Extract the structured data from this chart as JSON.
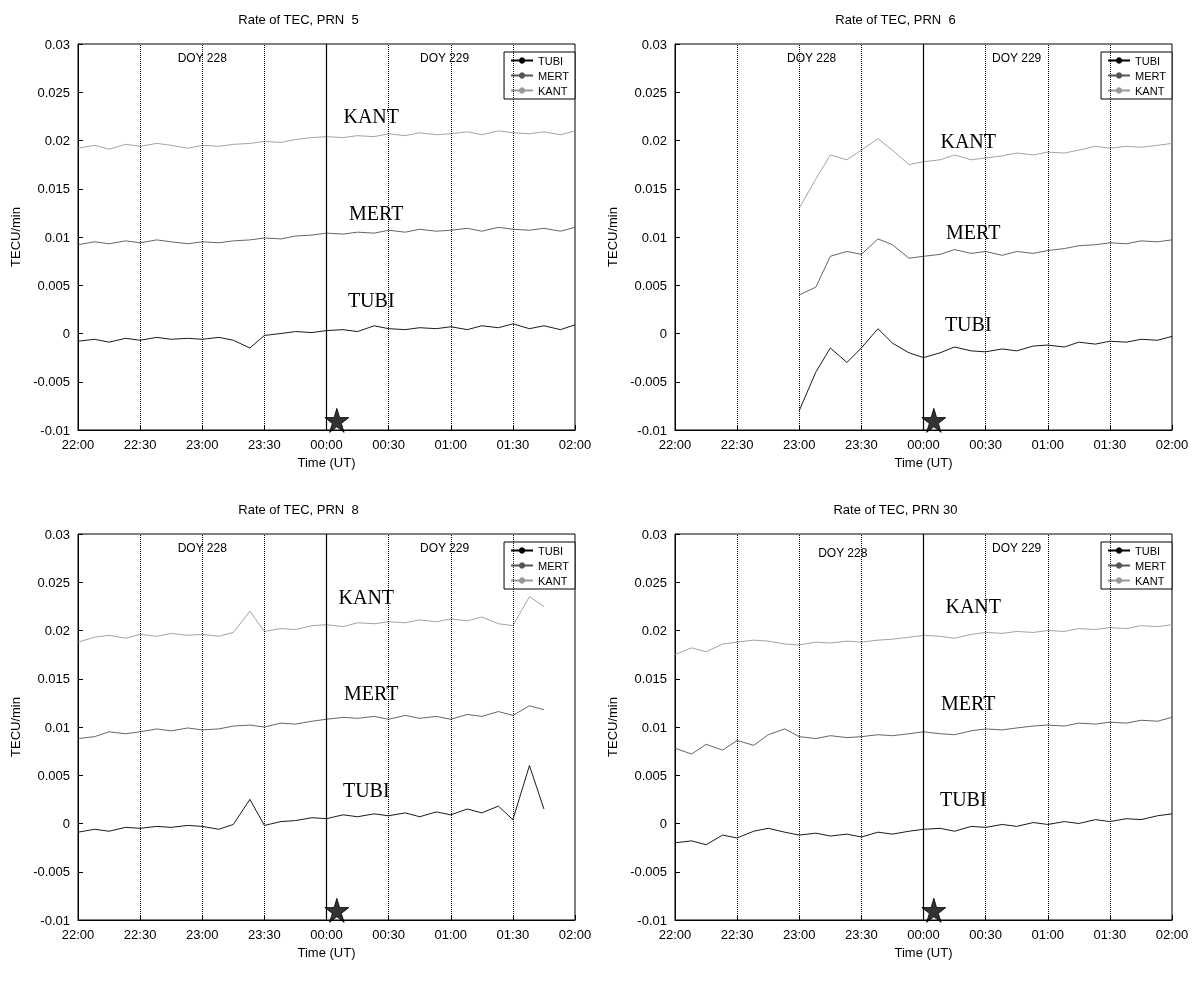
{
  "chart_data": [
    {
      "type": "line",
      "title": "Rate of TEC, PRN  5",
      "xlabel": "Time (UT)",
      "ylabel": "TECU/min",
      "xlim": [
        "--08-16T22:00",
        "--08-17T02:00"
      ],
      "ylim": [
        -0.01,
        0.03
      ],
      "xticks": [
        {
          "value": "--08-16T22:00",
          "label": "22:00"
        },
        {
          "value": "--08-16T22:30",
          "label": "22:30"
        },
        {
          "value": "--08-16T23:00",
          "label": "23:00"
        },
        {
          "value": "--08-16T23:30",
          "label": "23:30"
        },
        {
          "value": "--08-17T00:00",
          "label": "00:00"
        },
        {
          "value": "--08-17T00:30",
          "label": "00:30"
        },
        {
          "value": "--08-17T01:00",
          "label": "01:00"
        },
        {
          "value": "--08-17T01:30",
          "label": "01:30"
        },
        {
          "value": "--08-17T02:00",
          "label": "02:00"
        }
      ],
      "yticks": [
        -0.01,
        -0.005,
        0,
        0.005,
        0.01,
        0.015,
        0.02,
        0.025,
        0.03
      ],
      "grid": "x",
      "legend": "top right",
      "marker": "none",
      "line_style": "solid",
      "ref_lines": [
        {
          "axis": "x",
          "value": "--08-17T00:00",
          "color": "#000000",
          "line_style": "solid"
        }
      ],
      "annotations": [
        "DOY 228",
        "DOY 229",
        "KANT",
        "MERT",
        "TUBI"
      ],
      "x": [
        "--08-16T22:00",
        "--08-16T22:08",
        "--08-16T22:15",
        "--08-16T22:23",
        "--08-16T22:30",
        "--08-16T22:38",
        "--08-16T22:45",
        "--08-16T22:53",
        "--08-16T23:00",
        "--08-16T23:08",
        "--08-16T23:15",
        "--08-16T23:23",
        "--08-16T23:30",
        "--08-16T23:38",
        "--08-16T23:45",
        "--08-16T23:53",
        "--08-17T00:00",
        "--08-17T00:08",
        "--08-17T00:15",
        "--08-17T00:23",
        "--08-17T00:30",
        "--08-17T00:38",
        "--08-17T00:45",
        "--08-17T00:53",
        "--08-17T01:00",
        "--08-17T01:08",
        "--08-17T01:15",
        "--08-17T01:23",
        "--08-17T01:30",
        "--08-17T01:38",
        "--08-17T01:45",
        "--08-17T01:53",
        "--08-17T02:00"
      ],
      "series": [
        {
          "name": "TUBI",
          "color": "#000000",
          "values": [
            -0.0008,
            -0.0006,
            -0.0009,
            -0.0005,
            -0.0007,
            -0.0004,
            -0.0006,
            -0.0005,
            -0.0006,
            -0.0004,
            -0.0007,
            -0.0015,
            -0.0002,
            0,
            0.0002,
            0.0001,
            0.0003,
            0.0004,
            0.0002,
            0.0008,
            0.0005,
            0.0004,
            0.0006,
            0.0005,
            0.0007,
            0.0004,
            0.0008,
            0.0006,
            0.001,
            0.0005,
            0.0008,
            0.0004,
            0.0009
          ]
        },
        {
          "name": "MERT",
          "color": "#555555",
          "values": [
            0.0092,
            0.0095,
            0.0093,
            0.0096,
            0.0094,
            0.0097,
            0.0095,
            0.0093,
            0.0095,
            0.0094,
            0.0096,
            0.0097,
            0.0099,
            0.0098,
            0.0101,
            0.0102,
            0.0104,
            0.0103,
            0.0105,
            0.0104,
            0.0107,
            0.0105,
            0.0108,
            0.0106,
            0.0107,
            0.0109,
            0.0106,
            0.011,
            0.0108,
            0.0107,
            0.0109,
            0.0106,
            0.011
          ]
        },
        {
          "name": "KANT",
          "color": "#999999",
          "values": [
            0.0192,
            0.0195,
            0.0191,
            0.0196,
            0.0194,
            0.0197,
            0.0195,
            0.0192,
            0.0195,
            0.0194,
            0.0196,
            0.0197,
            0.0199,
            0.0198,
            0.0201,
            0.0203,
            0.0204,
            0.0203,
            0.0205,
            0.0204,
            0.0207,
            0.0205,
            0.0208,
            0.0206,
            0.0207,
            0.0209,
            0.0206,
            0.021,
            0.0208,
            0.0207,
            0.0209,
            0.0206,
            0.021
          ]
        },
        {
          "type": "scatter",
          "marker": "star",
          "color": "#000000",
          "x": [
            "--08-17T00:05"
          ],
          "values": [
            -0.009
          ]
        }
      ]
    },
    {
      "type": "line",
      "title": "Rate of TEC, PRN  6",
      "xlabel": "Time (UT)",
      "ylabel": "TECU/min",
      "xlim": [
        "--08-16T22:00",
        "--08-17T02:00"
      ],
      "ylim": [
        -0.01,
        0.03
      ],
      "xticks": [
        {
          "value": "--08-16T22:00",
          "label": "22:00"
        },
        {
          "value": "--08-16T22:30",
          "label": "22:30"
        },
        {
          "value": "--08-16T23:00",
          "label": "23:00"
        },
        {
          "value": "--08-16T23:30",
          "label": "23:30"
        },
        {
          "value": "--08-17T00:00",
          "label": "00:00"
        },
        {
          "value": "--08-17T00:30",
          "label": "00:30"
        },
        {
          "value": "--08-17T01:00",
          "label": "01:00"
        },
        {
          "value": "--08-17T01:30",
          "label": "01:30"
        },
        {
          "value": "--08-17T02:00",
          "label": "02:00"
        }
      ],
      "yticks": [
        -0.01,
        -0.005,
        0,
        0.005,
        0.01,
        0.015,
        0.02,
        0.025,
        0.03
      ],
      "grid": "x",
      "legend": "top right",
      "marker": "none",
      "line_style": "solid",
      "ref_lines": [
        {
          "axis": "x",
          "value": "--08-17T00:00",
          "color": "#000000",
          "line_style": "solid"
        }
      ],
      "annotations": [
        "DOY 228",
        "DOY 229",
        "KANT",
        "MERT",
        "TUBI"
      ],
      "x": [
        "--08-16T23:00",
        "--08-16T23:08",
        "--08-16T23:15",
        "--08-16T23:23",
        "--08-16T23:30",
        "--08-16T23:38",
        "--08-16T23:45",
        "--08-16T23:53",
        "--08-17T00:00",
        "--08-17T00:08",
        "--08-17T00:15",
        "--08-17T00:23",
        "--08-17T00:30",
        "--08-17T00:38",
        "--08-17T00:45",
        "--08-17T00:53",
        "--08-17T01:00",
        "--08-17T01:08",
        "--08-17T01:15",
        "--08-17T01:23",
        "--08-17T01:30",
        "--08-17T01:38",
        "--08-17T01:45",
        "--08-17T01:53",
        "--08-17T02:00"
      ],
      "series": [
        {
          "name": "TUBI",
          "color": "#000000",
          "values": [
            -0.008,
            -0.004,
            -0.0015,
            -0.003,
            -0.0015,
            0.0005,
            -0.001,
            -0.002,
            -0.0025,
            -0.002,
            -0.0014,
            -0.0018,
            -0.0019,
            -0.0016,
            -0.0018,
            -0.0013,
            -0.0012,
            -0.0014,
            -0.0009,
            -0.0011,
            -0.0008,
            -0.0009,
            -0.0006,
            -0.0007,
            -0.0003
          ]
        },
        {
          "name": "MERT",
          "color": "#555555",
          "values": [
            0.004,
            0.0048,
            0.008,
            0.0085,
            0.0082,
            0.0098,
            0.0092,
            0.0078,
            0.008,
            0.0082,
            0.0087,
            0.0083,
            0.0085,
            0.0081,
            0.0085,
            0.0083,
            0.0086,
            0.0088,
            0.0091,
            0.0092,
            0.0094,
            0.0093,
            0.0096,
            0.0095,
            0.0097
          ]
        },
        {
          "name": "KANT",
          "color": "#999999",
          "values": [
            0.013,
            0.016,
            0.0185,
            0.018,
            0.019,
            0.0202,
            0.019,
            0.0175,
            0.0178,
            0.018,
            0.0185,
            0.018,
            0.0182,
            0.0184,
            0.0187,
            0.0185,
            0.0188,
            0.0187,
            0.019,
            0.0194,
            0.0192,
            0.0194,
            0.0193,
            0.0195,
            0.0197
          ]
        },
        {
          "type": "scatter",
          "marker": "star",
          "color": "#000000",
          "x": [
            "--08-17T00:05"
          ],
          "values": [
            -0.009
          ]
        }
      ]
    },
    {
      "type": "line",
      "title": "Rate of TEC, PRN  8",
      "xlabel": "Time (UT)",
      "ylabel": "TECU/min",
      "xlim": [
        "--08-16T22:00",
        "--08-17T02:00"
      ],
      "ylim": [
        -0.01,
        0.03
      ],
      "xticks": [
        {
          "value": "--08-16T22:00",
          "label": "22:00"
        },
        {
          "value": "--08-16T22:30",
          "label": "22:30"
        },
        {
          "value": "--08-16T23:00",
          "label": "23:00"
        },
        {
          "value": "--08-16T23:30",
          "label": "23:30"
        },
        {
          "value": "--08-17T00:00",
          "label": "00:00"
        },
        {
          "value": "--08-17T00:30",
          "label": "00:30"
        },
        {
          "value": "--08-17T01:00",
          "label": "01:00"
        },
        {
          "value": "--08-17T01:30",
          "label": "01:30"
        },
        {
          "value": "--08-17T02:00",
          "label": "02:00"
        }
      ],
      "yticks": [
        -0.01,
        -0.005,
        0,
        0.005,
        0.01,
        0.015,
        0.02,
        0.025,
        0.03
      ],
      "grid": "x",
      "legend": "top right",
      "marker": "none",
      "line_style": "solid",
      "ref_lines": [
        {
          "axis": "x",
          "value": "--08-17T00:00",
          "color": "#000000",
          "line_style": "solid"
        }
      ],
      "annotations": [
        "DOY 228",
        "DOY 229",
        "KANT",
        "MERT",
        "TUBI"
      ],
      "x": [
        "--08-16T22:00",
        "--08-16T22:08",
        "--08-16T22:15",
        "--08-16T22:23",
        "--08-16T22:30",
        "--08-16T22:38",
        "--08-16T22:45",
        "--08-16T22:53",
        "--08-16T23:00",
        "--08-16T23:08",
        "--08-16T23:15",
        "--08-16T23:23",
        "--08-16T23:30",
        "--08-16T23:38",
        "--08-16T23:45",
        "--08-16T23:53",
        "--08-17T00:00",
        "--08-17T00:08",
        "--08-17T00:15",
        "--08-17T00:23",
        "--08-17T00:30",
        "--08-17T00:38",
        "--08-17T00:45",
        "--08-17T00:53",
        "--08-17T01:00",
        "--08-17T01:08",
        "--08-17T01:15",
        "--08-17T01:23",
        "--08-17T01:30",
        "--08-17T01:38",
        "--08-17T01:45"
      ],
      "series": [
        {
          "name": "TUBI",
          "color": "#000000",
          "values": [
            -0.0009,
            -0.0006,
            -0.0008,
            -0.0004,
            -0.0005,
            -0.0003,
            -0.0004,
            -0.0002,
            -0.0003,
            -0.0006,
            -0.0001,
            0.0025,
            -0.0002,
            0.0002,
            0.0003,
            0.0006,
            0.0005,
            0.0009,
            0.0007,
            0.001,
            0.0008,
            0.0011,
            0.0007,
            0.0012,
            0.0009,
            0.0015,
            0.0011,
            0.0018,
            0.0004,
            0.006,
            0.0015
          ]
        },
        {
          "name": "MERT",
          "color": "#555555",
          "values": [
            0.0088,
            0.009,
            0.0095,
            0.0093,
            0.0095,
            0.0098,
            0.0096,
            0.0099,
            0.0097,
            0.0098,
            0.0101,
            0.0102,
            0.01,
            0.0104,
            0.0103,
            0.0106,
            0.0108,
            0.011,
            0.0109,
            0.0111,
            0.0108,
            0.0112,
            0.0109,
            0.0111,
            0.0108,
            0.0113,
            0.0111,
            0.0116,
            0.0112,
            0.0122,
            0.0118
          ]
        },
        {
          "name": "KANT",
          "color": "#999999",
          "values": [
            0.0188,
            0.0193,
            0.0195,
            0.0192,
            0.0196,
            0.0194,
            0.0197,
            0.0195,
            0.0196,
            0.0194,
            0.0198,
            0.022,
            0.0199,
            0.0202,
            0.0201,
            0.0205,
            0.0206,
            0.0204,
            0.0208,
            0.0207,
            0.0209,
            0.0208,
            0.0211,
            0.0209,
            0.0212,
            0.021,
            0.0214,
            0.0207,
            0.0205,
            0.0235,
            0.0225
          ]
        },
        {
          "type": "scatter",
          "marker": "star",
          "color": "#000000",
          "x": [
            "--08-17T00:05"
          ],
          "values": [
            -0.009
          ]
        }
      ]
    },
    {
      "type": "line",
      "title": "Rate of TEC, PRN 30",
      "xlabel": "Time (UT)",
      "ylabel": "TECU/min",
      "xlim": [
        "--08-16T22:00",
        "--08-17T02:00"
      ],
      "ylim": [
        -0.01,
        0.03
      ],
      "xticks": [
        {
          "value": "--08-16T22:00",
          "label": "22:00"
        },
        {
          "value": "--08-16T22:30",
          "label": "22:30"
        },
        {
          "value": "--08-16T23:00",
          "label": "23:00"
        },
        {
          "value": "--08-16T23:30",
          "label": "23:30"
        },
        {
          "value": "--08-17T00:00",
          "label": "00:00"
        },
        {
          "value": "--08-17T00:30",
          "label": "00:30"
        },
        {
          "value": "--08-17T01:00",
          "label": "01:00"
        },
        {
          "value": "--08-17T01:30",
          "label": "01:30"
        },
        {
          "value": "--08-17T02:00",
          "label": "02:00"
        }
      ],
      "yticks": [
        -0.01,
        -0.005,
        0,
        0.005,
        0.01,
        0.015,
        0.02,
        0.025,
        0.03
      ],
      "grid": "x",
      "legend": "top right",
      "marker": "none",
      "line_style": "solid",
      "ref_lines": [
        {
          "axis": "x",
          "value": "--08-17T00:00",
          "color": "#000000",
          "line_style": "solid"
        }
      ],
      "annotations": [
        "DOY 228",
        "DOY 229",
        "KANT",
        "MERT",
        "TUBI"
      ],
      "x": [
        "--08-16T22:00",
        "--08-16T22:08",
        "--08-16T22:15",
        "--08-16T22:23",
        "--08-16T22:30",
        "--08-16T22:38",
        "--08-16T22:45",
        "--08-16T22:53",
        "--08-16T23:00",
        "--08-16T23:08",
        "--08-16T23:15",
        "--08-16T23:23",
        "--08-16T23:30",
        "--08-16T23:38",
        "--08-16T23:45",
        "--08-16T23:53",
        "--08-17T00:00",
        "--08-17T00:08",
        "--08-17T00:15",
        "--08-17T00:23",
        "--08-17T00:30",
        "--08-17T00:38",
        "--08-17T00:45",
        "--08-17T00:53",
        "--08-17T01:00",
        "--08-17T01:08",
        "--08-17T01:15",
        "--08-17T01:23",
        "--08-17T01:30",
        "--08-17T01:38",
        "--08-17T01:45",
        "--08-17T01:53",
        "--08-17T02:00"
      ],
      "series": [
        {
          "name": "TUBI",
          "color": "#000000",
          "values": [
            -0.002,
            -0.0018,
            -0.0022,
            -0.0012,
            -0.0015,
            -0.0008,
            -0.0005,
            -0.0009,
            -0.0012,
            -0.001,
            -0.0013,
            -0.0011,
            -0.0014,
            -0.0009,
            -0.0011,
            -0.0008,
            -0.0006,
            -0.0005,
            -0.0008,
            -0.0003,
            -0.0004,
            -0.0001,
            -0.0003,
            0.0001,
            -0.0001,
            0.0002,
            0,
            0.0004,
            0.0002,
            0.0005,
            0.0004,
            0.0008,
            0.001
          ]
        },
        {
          "name": "MERT",
          "color": "#555555",
          "values": [
            0.0078,
            0.0072,
            0.0082,
            0.0076,
            0.0086,
            0.0081,
            0.0092,
            0.0098,
            0.009,
            0.0088,
            0.0091,
            0.0089,
            0.009,
            0.0092,
            0.0091,
            0.0093,
            0.0095,
            0.0093,
            0.0092,
            0.0096,
            0.0098,
            0.0097,
            0.0099,
            0.0101,
            0.0102,
            0.0101,
            0.0104,
            0.0103,
            0.0105,
            0.0104,
            0.0107,
            0.0106,
            0.011
          ]
        },
        {
          "name": "KANT",
          "color": "#999999",
          "values": [
            0.0175,
            0.0182,
            0.0178,
            0.0186,
            0.0188,
            0.019,
            0.0189,
            0.0186,
            0.0185,
            0.0188,
            0.0187,
            0.0189,
            0.0188,
            0.019,
            0.0191,
            0.0193,
            0.0195,
            0.0194,
            0.0192,
            0.0196,
            0.0198,
            0.0197,
            0.0199,
            0.0198,
            0.02,
            0.0199,
            0.0202,
            0.0201,
            0.0203,
            0.0202,
            0.0205,
            0.0204,
            0.0206
          ]
        },
        {
          "type": "scatter",
          "marker": "star",
          "color": "#000000",
          "x": [
            "--08-17T00:05"
          ],
          "values": [
            -0.009
          ]
        }
      ]
    }
  ]
}
